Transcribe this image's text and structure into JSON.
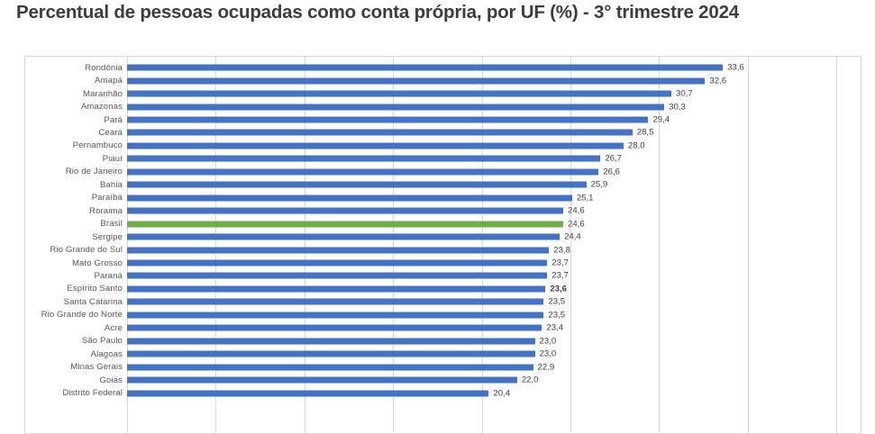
{
  "title": "Percentual de pessoas ocupadas como conta própria, por UF (%) - 3° trimestre 2024",
  "chart_data": {
    "type": "bar",
    "orientation": "horizontal",
    "title": "Percentual de pessoas ocupadas como conta própria, por UF (%) - 3° trimestre 2024",
    "xlabel": "",
    "ylabel": "",
    "xlim": [
      0,
      40
    ],
    "gridline_interval": 5,
    "grid": true,
    "legend": "none",
    "value_format": "comma-decimal, 1 decimal place",
    "colors": {
      "bar_blue": "#4472C4",
      "bar_green_brasil": "#70AD47",
      "gridline": "#D9D9D9",
      "category_label": "#595959",
      "value_label": "#404040",
      "title": "#3D3D3D"
    },
    "entries": [
      {
        "label": "Rondônia",
        "value": 33.6,
        "display": "33,6"
      },
      {
        "label": "Amapá",
        "value": 32.6,
        "display": "32,6"
      },
      {
        "label": "Maranhão",
        "value": 30.7,
        "display": "30,7"
      },
      {
        "label": "Amazonas",
        "value": 30.3,
        "display": "30,3"
      },
      {
        "label": "Pará",
        "value": 29.4,
        "display": "29,4"
      },
      {
        "label": "Ceará",
        "value": 28.5,
        "display": "28,5"
      },
      {
        "label": "Pernambuco",
        "value": 28.0,
        "display": "28,0"
      },
      {
        "label": "Piauí",
        "value": 26.7,
        "display": "26,7"
      },
      {
        "label": "Rio de Janeiro",
        "value": 26.6,
        "display": "26,6"
      },
      {
        "label": "Bahia",
        "value": 25.9,
        "display": "25,9"
      },
      {
        "label": "Paraíba",
        "value": 25.1,
        "display": "25,1"
      },
      {
        "label": "Roraima",
        "value": 24.6,
        "display": "24,6"
      },
      {
        "label": "Brasil",
        "value": 24.6,
        "display": "24,6",
        "is_brasil": true
      },
      {
        "label": "Sergipe",
        "value": 24.4,
        "display": "24,4"
      },
      {
        "label": "Rio Grande do Sul",
        "value": 23.8,
        "display": "23,8"
      },
      {
        "label": "Mato Grosso",
        "value": 23.7,
        "display": "23,7"
      },
      {
        "label": "Paraná",
        "value": 23.7,
        "display": "23,7"
      },
      {
        "label": "Espírito Santo",
        "value": 23.6,
        "display": "23,6",
        "bold_value": true
      },
      {
        "label": "Santa Catarina",
        "value": 23.5,
        "display": "23,5"
      },
      {
        "label": "Rio Grande do Norte",
        "value": 23.5,
        "display": "23,5"
      },
      {
        "label": "Acre",
        "value": 23.4,
        "display": "23,4"
      },
      {
        "label": "São Paulo",
        "value": 23.0,
        "display": "23,0"
      },
      {
        "label": "Alagoas",
        "value": 23.0,
        "display": "23,0"
      },
      {
        "label": "Minas Gerais",
        "value": 22.9,
        "display": "22,9"
      },
      {
        "label": "Goiás",
        "value": 22.0,
        "display": "22,0"
      },
      {
        "label": "Distrito Federal",
        "value": 20.4,
        "display": "20,4"
      }
    ]
  }
}
